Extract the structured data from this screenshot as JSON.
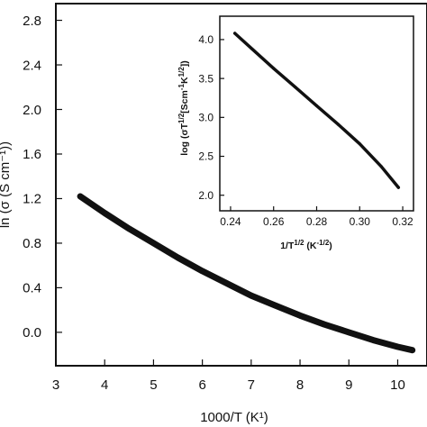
{
  "chart_data": [
    {
      "type": "line",
      "title": "",
      "xlabel": "1000/T (K¹)",
      "ylabel": "ln (σ (S cm⁻¹))",
      "xlim": [
        3,
        10.6
      ],
      "ylim": [
        -0.3,
        2.95
      ],
      "xticks": [
        "3",
        "4",
        "5",
        "6",
        "7",
        "8",
        "9",
        "10"
      ],
      "yticks": [
        "0.0",
        "0.4",
        "0.8",
        "1.2",
        "1.6",
        "2.0",
        "2.4",
        "2.8"
      ],
      "grid": false,
      "series": [
        {
          "x": [
            3.5,
            4.0,
            4.5,
            5.0,
            5.5,
            6.0,
            6.5,
            7.0,
            7.5,
            8.0,
            8.5,
            9.0,
            9.5,
            10.0,
            10.3
          ],
          "values": [
            1.22,
            1.07,
            0.93,
            0.8,
            0.67,
            0.55,
            0.44,
            0.33,
            0.24,
            0.15,
            0.07,
            0.0,
            -0.07,
            -0.13,
            -0.16
          ]
        }
      ]
    },
    {
      "type": "line",
      "title": "",
      "xlabel": "1/T^1/2 (K^-1/2)",
      "ylabel": "log (σT^1/2 [Scm^-1K^1/2])",
      "xlim": [
        0.235,
        0.325
      ],
      "ylim": [
        1.8,
        4.3
      ],
      "xticks": [
        "0.24",
        "0.26",
        "0.28",
        "0.30",
        "0.32"
      ],
      "yticks": [
        "2.0",
        "2.5",
        "3.0",
        "3.5",
        "4.0"
      ],
      "grid": false,
      "series": [
        {
          "x": [
            0.242,
            0.25,
            0.26,
            0.27,
            0.28,
            0.29,
            0.3,
            0.31,
            0.318
          ],
          "values": [
            4.08,
            3.88,
            3.63,
            3.39,
            3.15,
            2.91,
            2.66,
            2.37,
            2.1
          ]
        }
      ]
    }
  ]
}
